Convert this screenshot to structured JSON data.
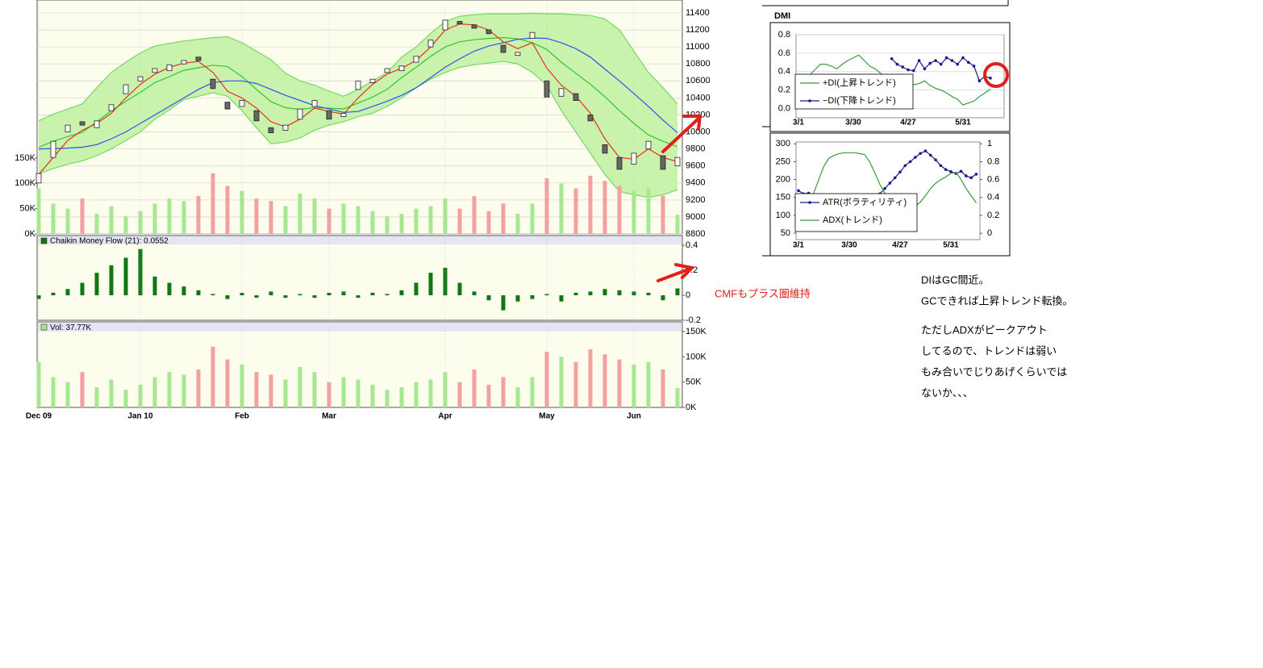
{
  "chart_data": [
    {
      "type": "candlestick",
      "open": [
        9400,
        9700,
        10000,
        10120,
        10050,
        10250,
        10450,
        10600,
        10700,
        10720,
        10800,
        10880,
        10620,
        10350,
        10300,
        10250,
        10050,
        10020,
        10150,
        10300,
        10250,
        10180,
        10500,
        10580,
        10700,
        10720,
        10820,
        11000,
        11200,
        11300,
        11260,
        11200,
        11020,
        10900,
        11100,
        10600,
        10420,
        10450,
        10200,
        9850,
        9700,
        9620,
        9800,
        9720,
        9600
      ],
      "close": [
        9510,
        9890,
        10080,
        10080,
        10130,
        10320,
        10555,
        10650,
        10745,
        10790,
        10840,
        10840,
        10510,
        10270,
        10370,
        10130,
        9990,
        10080,
        10270,
        10370,
        10150,
        10220,
        10600,
        10620,
        10745,
        10775,
        10890,
        11080,
        11315,
        11270,
        11220,
        11155,
        10935,
        10935,
        11170,
        10410,
        10510,
        10370,
        10130,
        9750,
        9560,
        9750,
        9890,
        9560,
        9700
      ],
      "up_color": "#ffffff",
      "down_color": "#666666",
      "band": {
        "color": "#c9f2ad",
        "edge_color": "#77d765",
        "upper": [
          10130,
          10210,
          10270,
          10330,
          10520,
          10700,
          10820,
          10930,
          11010,
          11040,
          11070,
          11090,
          11110,
          11120,
          11050,
          10950,
          10850,
          10690,
          10600,
          10550,
          10480,
          10420,
          10500,
          10600,
          10700,
          10880,
          11000,
          11160,
          11300,
          11360,
          11380,
          11390,
          11390,
          11390,
          11395,
          11390,
          11390,
          11380,
          11370,
          11330,
          11200,
          10950,
          10700,
          10520,
          10330
        ],
        "lower": [
          9510,
          9570,
          9620,
          9660,
          9720,
          9800,
          9900,
          10000,
          10150,
          10260,
          10380,
          10420,
          10460,
          10420,
          10250,
          10050,
          9860,
          9880,
          9930,
          10020,
          10080,
          10120,
          10180,
          10220,
          10300,
          10400,
          10520,
          10620,
          10700,
          10760,
          10790,
          10810,
          10830,
          10800,
          10700,
          10550,
          10250,
          10000,
          9750,
          9500,
          9300,
          9260,
          9230,
          9260,
          9320
        ]
      },
      "series": [
        {
          "color": "#2ec82e",
          "values": [
            9820,
            9890,
            9945,
            9995,
            10120,
            10250,
            10360,
            10465,
            10580,
            10650,
            10725,
            10755,
            10785,
            10770,
            10650,
            10500,
            10355,
            10285,
            10265,
            10285,
            10280,
            10270,
            10340,
            10410,
            10500,
            10640,
            10760,
            10890,
            11000,
            11060,
            11085,
            11100,
            11110,
            11095,
            11050,
            10970,
            10820,
            10690,
            10560,
            10415,
            10250,
            10100,
            9965,
            9890,
            9825
          ]
        },
        {
          "color": "#3050f0",
          "values": [
            9800,
            9805,
            9810,
            9820,
            9850,
            9920,
            10000,
            10100,
            10200,
            10300,
            10400,
            10500,
            10580,
            10600,
            10600,
            10570,
            10500,
            10430,
            10370,
            10310,
            10270,
            10230,
            10240,
            10300,
            10360,
            10430,
            10520,
            10640,
            10760,
            10860,
            10950,
            11010,
            11050,
            11090,
            11105,
            11100,
            11050,
            10980,
            10880,
            10740,
            10600,
            10450,
            10300,
            10140,
            9990
          ]
        },
        {
          "color": "#e83020",
          "values": [
            9500,
            9700,
            9900,
            10020,
            10100,
            10220,
            10400,
            10560,
            10680,
            10760,
            10810,
            10830,
            10700,
            10480,
            10400,
            10280,
            10120,
            10060,
            10150,
            10280,
            10240,
            10210,
            10400,
            10560,
            10680,
            10750,
            10840,
            11000,
            11200,
            11270,
            11260,
            11200,
            11060,
            10980,
            11050,
            10750,
            10550,
            10420,
            10220,
            9920,
            9700,
            9680,
            9800,
            9700,
            9650
          ]
        },
        {
          "axis": "y2",
          "colors": [
            "#a6e892",
            "#f2a0a0"
          ],
          "values": [
            90,
            60,
            50,
            70,
            40,
            55,
            35,
            45,
            60,
            70,
            65,
            75,
            120,
            95,
            85,
            70,
            65,
            55,
            80,
            70,
            50,
            60,
            55,
            45,
            35,
            40,
            50,
            55,
            70,
            50,
            75,
            45,
            60,
            40,
            60,
            110,
            100,
            90,
            115,
            105,
            95,
            85,
            90,
            75,
            38
          ]
        }
      ],
      "ylim": [
        8800,
        11400
      ],
      "yticks": [
        11400,
        11200,
        11000,
        10800,
        10600,
        10400,
        10200,
        10000,
        9800,
        9600,
        9400,
        9200,
        9000,
        8800
      ],
      "y2lim": [
        0,
        437
      ],
      "y2ticks": [
        {
          "value": 150,
          "label": "150K"
        },
        {
          "value": 100,
          "label": "100K"
        },
        {
          "value": 50,
          "label": "50K"
        },
        {
          "value": 0,
          "label": "0K"
        }
      ],
      "grid": true
    },
    {
      "type": "bar",
      "title": "Chaikin Money Flow (21): 0.0552",
      "color": "#117711",
      "values": [
        -0.03,
        0.02,
        0.05,
        0.1,
        0.18,
        0.24,
        0.3,
        0.37,
        0.15,
        0.1,
        0.07,
        0.04,
        0.01,
        -0.03,
        0.02,
        -0.02,
        0.03,
        -0.02,
        0.01,
        -0.02,
        0.02,
        0.03,
        -0.02,
        0.02,
        0.01,
        0.04,
        0.1,
        0.18,
        0.22,
        0.1,
        0.03,
        -0.04,
        -0.12,
        -0.05,
        -0.03,
        0.01,
        -0.05,
        0.02,
        0.03,
        0.05,
        0.04,
        0.03,
        0.02,
        -0.04,
        0.055
      ],
      "ylim": [
        -0.2,
        0.4
      ],
      "yticks": [
        0.4,
        0.2,
        0,
        -0.2
      ]
    },
    {
      "type": "bar",
      "title": "Vol: 37.77K",
      "color": "#a6e892",
      "colors": [
        "#a6e892",
        "#f2a0a0"
      ],
      "categories": [
        "Dec 09",
        null,
        null,
        null,
        null,
        null,
        null,
        "Jan 10",
        null,
        null,
        null,
        null,
        null,
        null,
        "Feb",
        null,
        null,
        null,
        null,
        null,
        "Mar",
        null,
        null,
        null,
        null,
        null,
        null,
        null,
        "Apr",
        null,
        null,
        null,
        null,
        null,
        null,
        "May",
        null,
        null,
        null,
        null,
        null,
        "Jun",
        null,
        null,
        null
      ],
      "values": [
        90,
        60,
        50,
        70,
        40,
        55,
        35,
        45,
        60,
        70,
        65,
        75,
        120,
        95,
        85,
        70,
        65,
        55,
        80,
        70,
        50,
        60,
        55,
        45,
        35,
        40,
        50,
        55,
        70,
        50,
        75,
        45,
        60,
        40,
        60,
        110,
        100,
        90,
        115,
        105,
        95,
        85,
        90,
        75,
        38
      ],
      "ylim": [
        0,
        166
      ],
      "yticks": [
        {
          "value": 150,
          "label": "150K"
        },
        {
          "value": 100,
          "label": "100K"
        },
        {
          "value": 50,
          "label": "50K"
        },
        {
          "value": 0,
          "label": "0K"
        }
      ]
    },
    {
      "type": "line",
      "title": "DMI",
      "categories": [
        "3/1",
        null,
        null,
        null,
        null,
        null,
        null,
        null,
        null,
        null,
        "3/30",
        null,
        null,
        null,
        null,
        null,
        null,
        null,
        null,
        null,
        "4/27",
        null,
        null,
        null,
        null,
        null,
        null,
        null,
        null,
        null,
        "5/31",
        null,
        null,
        null,
        null,
        null
      ],
      "series": [
        {
          "name": "+DI(上昇トレンド)",
          "color": "#3a9a3a",
          "values": [
            0.3,
            0.32,
            0.36,
            0.42,
            0.48,
            0.48,
            0.46,
            0.43,
            0.48,
            0.52,
            0.55,
            0.58,
            0.52,
            0.46,
            0.43,
            0.38,
            0.32,
            0.3,
            0.28,
            0.3,
            0.28,
            0.26,
            0.27,
            0.3,
            0.25,
            0.22,
            0.2,
            0.17,
            0.13,
            0.1,
            0.04,
            0.06,
            0.08,
            0.13,
            0.17,
            0.21
          ]
        },
        {
          "name": "−DI(下降トレンド)",
          "color": "#1a1a8a",
          "markers": true,
          "values": [
            null,
            null,
            null,
            null,
            null,
            null,
            null,
            null,
            null,
            null,
            null,
            null,
            null,
            null,
            null,
            null,
            null,
            0.54,
            0.48,
            0.45,
            0.42,
            0.41,
            0.52,
            0.43,
            0.49,
            0.52,
            0.48,
            0.55,
            0.52,
            0.48,
            0.55,
            0.5,
            0.46,
            0.3,
            0.35,
            0.33
          ]
        }
      ],
      "ylim": [
        -0.1,
        0.8
      ],
      "yticks": [
        0.8,
        0.6,
        0.4,
        0.2,
        {
          "value": 0,
          "label": "0.0"
        }
      ],
      "grid": true,
      "legend": "lower-left"
    },
    {
      "type": "line",
      "categories": [
        "3/1",
        null,
        null,
        null,
        null,
        null,
        null,
        null,
        null,
        null,
        "3/30",
        null,
        null,
        null,
        null,
        null,
        null,
        null,
        null,
        null,
        "4/27",
        null,
        null,
        null,
        null,
        null,
        null,
        null,
        null,
        null,
        "5/31",
        null,
        null,
        null,
        null,
        null
      ],
      "series": [
        {
          "name": "ATR(ボラティリティ)",
          "color": "#1a1a8a",
          "markers": true,
          "values": [
            169,
            160,
            162,
            158,
            150,
            140,
            135,
            132,
            130,
            128,
            125,
            130,
            135,
            140,
            145,
            150,
            160,
            175,
            190,
            205,
            221,
            239,
            250,
            262,
            273,
            280,
            268,
            255,
            239,
            228,
            222,
            217,
            223,
            210,
            205,
            215
          ]
        },
        {
          "name": "ADX(トレンド)",
          "color": "#3a9a3a",
          "axis": "y2",
          "values": [
            0.3,
            0.32,
            0.35,
            0.45,
            0.6,
            0.75,
            0.84,
            0.87,
            0.89,
            0.9,
            0.9,
            0.9,
            0.89,
            0.88,
            0.8,
            0.68,
            0.55,
            0.45,
            0.38,
            0.32,
            0.28,
            0.27,
            0.28,
            0.3,
            0.35,
            0.42,
            0.5,
            0.56,
            0.6,
            0.63,
            0.67,
            0.68,
            0.6,
            0.5,
            0.42,
            0.34
          ]
        }
      ],
      "ylim": [
        32,
        305
      ],
      "yticks": [
        300,
        250,
        200,
        150,
        100,
        50
      ],
      "y2lim": [
        -0.07,
        1.02
      ],
      "y2ticks": [
        1,
        0.8,
        0.6,
        0.4,
        0.2,
        0
      ],
      "grid": false,
      "legend": "lower-left"
    }
  ],
  "cmf_note": "CMFもプラス圏維持",
  "notes": [
    "DIはGC間近。",
    "GCできれば上昇トレンド転換。",
    "ただしADXがピークアウト",
    "してるので、トレンドは弱い",
    "もみ合いでじりあげくらいでは",
    "ないか、、、"
  ]
}
